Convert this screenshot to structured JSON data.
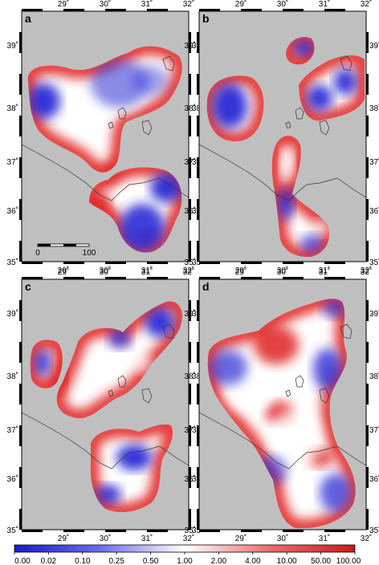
{
  "figure": {
    "panels": [
      {
        "label": "a",
        "show_scalebar": true
      },
      {
        "label": "b",
        "show_scalebar": false
      },
      {
        "label": "c",
        "show_scalebar": false
      },
      {
        "label": "d",
        "show_scalebar": false
      }
    ],
    "x_ticks": [
      "29˚",
      "30˚",
      "31˚",
      "32˚"
    ],
    "y_ticks": [
      "39˚",
      "38˚",
      "37˚",
      "36˚",
      "35˚"
    ],
    "scalebar": {
      "start_label": "0",
      "end_label": "100"
    },
    "colorbar": {
      "labels": [
        "0.00",
        "0.02",
        "0.10",
        "0.25",
        "0.50",
        "1.00",
        "2.00",
        "4.00",
        "10.00",
        "50.00",
        "100.00"
      ],
      "colors": {
        "low": "#1a1acc",
        "mid": "#ffffff",
        "high": "#cc1a1a"
      }
    },
    "colors": {
      "background": "#bfbfbf",
      "blue": "#2b2bd6",
      "red": "#e02020"
    }
  }
}
